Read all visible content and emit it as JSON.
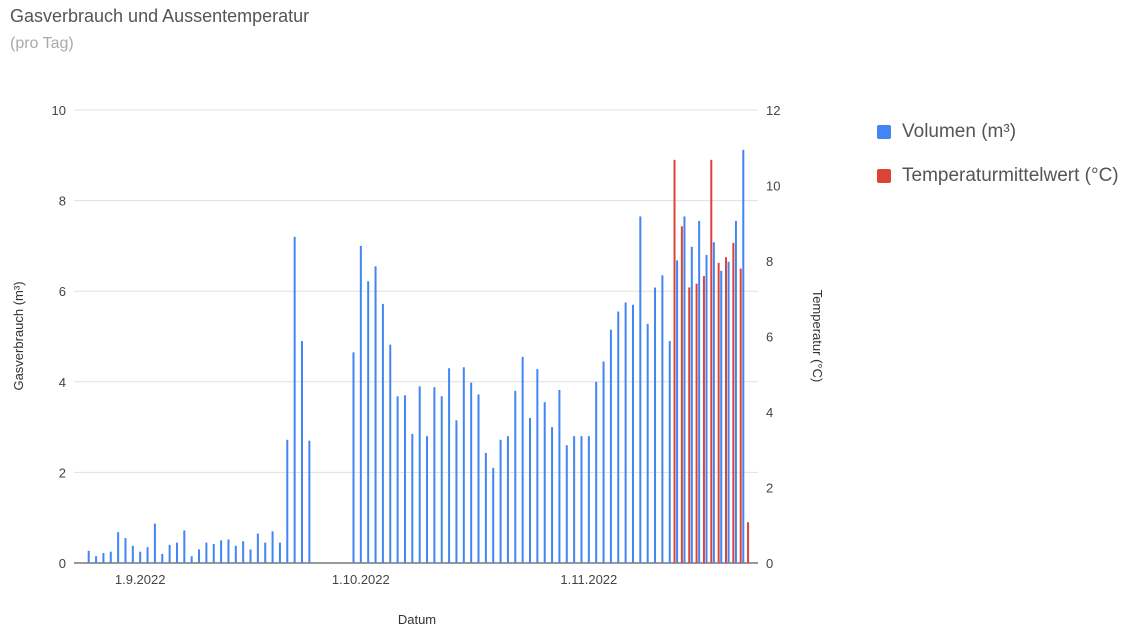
{
  "header": {
    "title": "Gasverbrauch und Aussentemperatur",
    "subtitle": "(pro Tag)"
  },
  "legend": [
    {
      "label": "Volumen (m³)",
      "color": "#4285f4"
    },
    {
      "label": "Temperaturmittelwert (°C)",
      "color": "#db4437"
    }
  ],
  "chart_data": {
    "type": "bar",
    "title": "Gasverbrauch und Aussentemperatur",
    "subtitle": "(pro Tag)",
    "xlabel": "Datum",
    "ylabel": "Gasverbrauch (m³)",
    "y2label": "Temperatur (°C)",
    "ylim": [
      0,
      10
    ],
    "y2lim": [
      0,
      12
    ],
    "yticks": [
      "0",
      "2",
      "4",
      "6",
      "8",
      "10"
    ],
    "y2ticks": [
      "0",
      "2",
      "4",
      "6",
      "8",
      "10",
      "12"
    ],
    "x_start": "2022-08-23",
    "x_end": "2022-11-24",
    "xticks": [
      {
        "date": "2022-09-01",
        "label": "1.9.2022"
      },
      {
        "date": "2022-10-01",
        "label": "1.10.2022"
      },
      {
        "date": "2022-11-01",
        "label": "1.11.2022"
      }
    ],
    "grid": true,
    "legend_position": "right",
    "series": [
      {
        "name": "Volumen (m³)",
        "axis": "left",
        "color": "#4285f4",
        "points": [
          [
            "2022-08-25",
            0.27
          ],
          [
            "2022-08-26",
            0.15
          ],
          [
            "2022-08-27",
            0.22
          ],
          [
            "2022-08-28",
            0.25
          ],
          [
            "2022-08-29",
            0.68
          ],
          [
            "2022-08-30",
            0.55
          ],
          [
            "2022-08-31",
            0.38
          ],
          [
            "2022-09-01",
            0.25
          ],
          [
            "2022-09-02",
            0.35
          ],
          [
            "2022-09-03",
            0.87
          ],
          [
            "2022-09-04",
            0.2
          ],
          [
            "2022-09-05",
            0.4
          ],
          [
            "2022-09-06",
            0.45
          ],
          [
            "2022-09-07",
            0.72
          ],
          [
            "2022-09-08",
            0.15
          ],
          [
            "2022-09-09",
            0.3
          ],
          [
            "2022-09-10",
            0.45
          ],
          [
            "2022-09-11",
            0.42
          ],
          [
            "2022-09-12",
            0.5
          ],
          [
            "2022-09-13",
            0.52
          ],
          [
            "2022-09-14",
            0.38
          ],
          [
            "2022-09-15",
            0.48
          ],
          [
            "2022-09-16",
            0.3
          ],
          [
            "2022-09-17",
            0.65
          ],
          [
            "2022-09-18",
            0.45
          ],
          [
            "2022-09-19",
            0.7
          ],
          [
            "2022-09-20",
            0.45
          ],
          [
            "2022-09-21",
            2.72
          ],
          [
            "2022-09-22",
            7.2
          ],
          [
            "2022-09-23",
            4.9
          ],
          [
            "2022-09-24",
            2.7
          ],
          [
            "2022-09-30",
            4.65
          ],
          [
            "2022-10-01",
            7.0
          ],
          [
            "2022-10-02",
            6.22
          ],
          [
            "2022-10-03",
            6.55
          ],
          [
            "2022-10-04",
            5.72
          ],
          [
            "2022-10-05",
            4.82
          ],
          [
            "2022-10-06",
            3.68
          ],
          [
            "2022-10-07",
            3.7
          ],
          [
            "2022-10-08",
            2.85
          ],
          [
            "2022-10-09",
            3.9
          ],
          [
            "2022-10-10",
            2.8
          ],
          [
            "2022-10-11",
            3.88
          ],
          [
            "2022-10-12",
            3.68
          ],
          [
            "2022-10-13",
            4.3
          ],
          [
            "2022-10-14",
            3.15
          ],
          [
            "2022-10-15",
            4.32
          ],
          [
            "2022-10-16",
            3.98
          ],
          [
            "2022-10-17",
            3.72
          ],
          [
            "2022-10-18",
            2.43
          ],
          [
            "2022-10-19",
            2.1
          ],
          [
            "2022-10-20",
            2.72
          ],
          [
            "2022-10-21",
            2.8
          ],
          [
            "2022-10-22",
            3.8
          ],
          [
            "2022-10-23",
            4.55
          ],
          [
            "2022-10-24",
            3.2
          ],
          [
            "2022-10-25",
            4.28
          ],
          [
            "2022-10-26",
            3.55
          ],
          [
            "2022-10-27",
            3.0
          ],
          [
            "2022-10-28",
            3.82
          ],
          [
            "2022-10-29",
            2.6
          ],
          [
            "2022-10-30",
            2.8
          ],
          [
            "2022-10-31",
            2.8
          ],
          [
            "2022-11-01",
            2.8
          ],
          [
            "2022-11-02",
            4.0
          ],
          [
            "2022-11-03",
            4.45
          ],
          [
            "2022-11-04",
            5.15
          ],
          [
            "2022-11-05",
            5.55
          ],
          [
            "2022-11-06",
            5.75
          ],
          [
            "2022-11-07",
            5.7
          ],
          [
            "2022-11-08",
            7.65
          ],
          [
            "2022-11-09",
            5.28
          ],
          [
            "2022-11-10",
            6.08
          ],
          [
            "2022-11-11",
            6.35
          ],
          [
            "2022-11-12",
            4.9
          ],
          [
            "2022-11-13",
            6.68
          ],
          [
            "2022-11-14",
            7.65
          ],
          [
            "2022-11-15",
            6.98
          ],
          [
            "2022-11-16",
            7.55
          ],
          [
            "2022-11-17",
            6.8
          ],
          [
            "2022-11-18",
            7.08
          ],
          [
            "2022-11-19",
            6.45
          ],
          [
            "2022-11-20",
            6.65
          ],
          [
            "2022-11-21",
            7.55
          ],
          [
            "2022-11-22",
            9.12
          ]
        ]
      },
      {
        "name": "Temperaturmittelwert (°C)",
        "axis": "right",
        "color": "#db4437",
        "points": [
          [
            "2022-11-13",
            10.68
          ],
          [
            "2022-11-14",
            8.92
          ],
          [
            "2022-11-15",
            7.3
          ],
          [
            "2022-11-16",
            7.4
          ],
          [
            "2022-11-17",
            7.6
          ],
          [
            "2022-11-18",
            10.68
          ],
          [
            "2022-11-19",
            7.95
          ],
          [
            "2022-11-20",
            8.1
          ],
          [
            "2022-11-21",
            8.48
          ],
          [
            "2022-11-22",
            7.8
          ],
          [
            "2022-11-23",
            1.08
          ]
        ]
      }
    ]
  }
}
